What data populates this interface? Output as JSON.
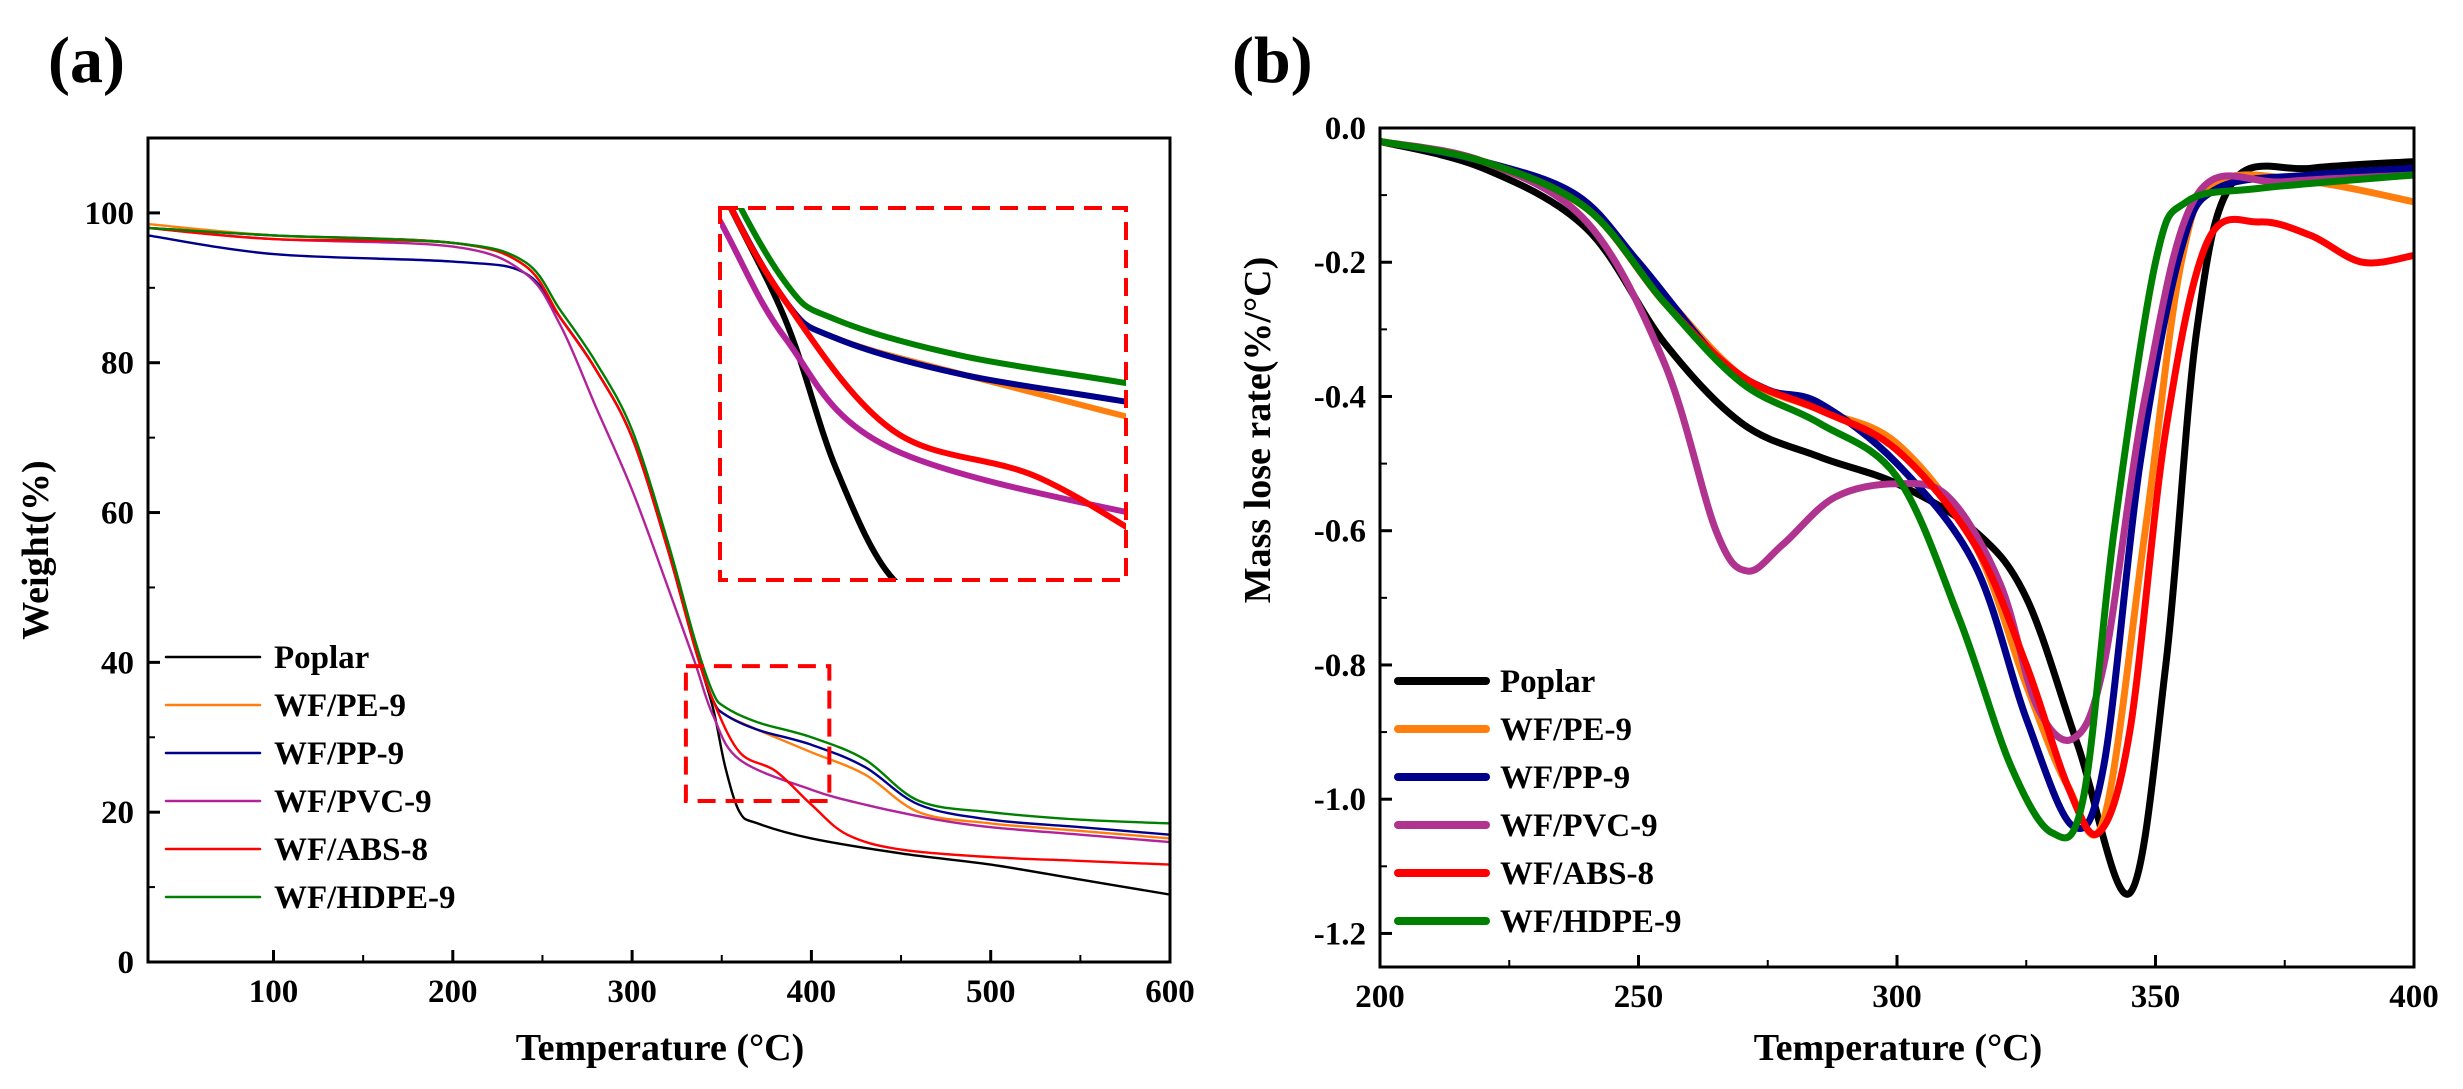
{
  "chart_data": [
    {
      "type": "line",
      "panel_label": "(a)",
      "xlabel": "Temperature (°C)",
      "ylabel": "Weight(%)",
      "xlim": [
        30,
        600
      ],
      "ylim": [
        0,
        110
      ],
      "xticks": [
        100,
        200,
        300,
        400,
        500,
        600
      ],
      "yticks": [
        0,
        20,
        40,
        60,
        80,
        100
      ],
      "legend_position": "bottom-left",
      "annotations": [
        "dashed red box around 330-410 °C, 21-39 % region",
        "magnified inset at top-right"
      ],
      "series": [
        {
          "name": "Poplar",
          "color": "#000000",
          "x": [
            30,
            100,
            200,
            240,
            260,
            280,
            300,
            320,
            335,
            345,
            352,
            360,
            370,
            400,
            450,
            500,
            550,
            600
          ],
          "y": [
            98,
            97,
            96,
            93,
            86,
            79,
            70,
            55,
            42,
            34,
            26,
            20,
            18.5,
            16.5,
            14.5,
            13,
            11,
            9
          ]
        },
        {
          "name": "WF/PE-9",
          "color": "#FF7F0E",
          "x": [
            30,
            100,
            200,
            240,
            260,
            280,
            300,
            320,
            335,
            345,
            352,
            370,
            400,
            430,
            460,
            500,
            550,
            600
          ],
          "y": [
            98.5,
            97,
            96,
            93,
            86,
            79,
            70,
            55,
            42,
            35,
            33,
            31,
            28,
            25,
            20,
            18.5,
            17.5,
            16.5
          ]
        },
        {
          "name": "WF/PP-9",
          "color": "#00008B",
          "x": [
            30,
            100,
            200,
            240,
            260,
            280,
            300,
            320,
            335,
            345,
            352,
            370,
            400,
            430,
            460,
            500,
            550,
            600
          ],
          "y": [
            97,
            94.5,
            93.5,
            92,
            86,
            79,
            70,
            55,
            42,
            35,
            33,
            31,
            29,
            26,
            21,
            19,
            18,
            17
          ]
        },
        {
          "name": "WF/PVC-9",
          "color": "#B22299",
          "x": [
            30,
            100,
            200,
            240,
            260,
            280,
            300,
            320,
            335,
            345,
            360,
            400,
            430,
            470,
            500,
            550,
            600
          ],
          "y": [
            98,
            96.5,
            95.5,
            92,
            85,
            74,
            63,
            50,
            40,
            33,
            27,
            23,
            21,
            19,
            18,
            17,
            16
          ]
        },
        {
          "name": "WF/ABS-8",
          "color": "#FF0000",
          "x": [
            30,
            100,
            200,
            240,
            260,
            280,
            300,
            320,
            335,
            345,
            360,
            380,
            400,
            420,
            450,
            500,
            550,
            600
          ],
          "y": [
            98,
            96.5,
            96,
            93,
            86,
            79,
            70,
            55,
            42,
            35,
            28,
            25.5,
            21,
            17,
            15,
            14,
            13.5,
            13
          ]
        },
        {
          "name": "WF/HDPE-9",
          "color": "#008000",
          "x": [
            30,
            100,
            200,
            240,
            260,
            280,
            300,
            320,
            335,
            345,
            352,
            370,
            400,
            430,
            460,
            500,
            550,
            600
          ],
          "y": [
            98,
            97,
            96,
            93.5,
            87,
            80,
            71,
            56,
            43,
            36,
            34,
            32,
            30,
            27,
            21.5,
            20,
            19,
            18.5
          ]
        }
      ]
    },
    {
      "type": "line",
      "panel_label": "(b)",
      "xlabel": "Temperature (°C)",
      "ylabel": "Mass lose rate(%/°C)",
      "xlim": [
        200,
        400
      ],
      "ylim": [
        -1.25,
        0
      ],
      "xticks": [
        200,
        250,
        300,
        350,
        400
      ],
      "yticks": [
        0.0,
        -0.2,
        -0.4,
        -0.6,
        -0.8,
        -1.0,
        -1.2
      ],
      "ytick_labels": [
        "0.0",
        "-0.2",
        "-0.4",
        "-0.6",
        "-0.8",
        "-1.0",
        "-1.2"
      ],
      "legend_position": "bottom-left",
      "series": [
        {
          "name": "Poplar",
          "color": "#000000",
          "x": [
            200,
            220,
            240,
            255,
            270,
            285,
            300,
            315,
            325,
            335,
            345,
            352,
            358,
            365,
            380,
            400
          ],
          "y": [
            -0.02,
            -0.06,
            -0.15,
            -0.32,
            -0.44,
            -0.49,
            -0.53,
            -0.6,
            -0.7,
            -0.92,
            -1.14,
            -0.8,
            -0.3,
            -0.08,
            -0.06,
            -0.05
          ]
        },
        {
          "name": "WF/PE-9",
          "color": "#FF7F0E",
          "x": [
            200,
            220,
            240,
            255,
            270,
            285,
            300,
            315,
            325,
            333,
            340,
            348,
            355,
            362,
            380,
            400
          ],
          "y": [
            -0.02,
            -0.05,
            -0.12,
            -0.25,
            -0.37,
            -0.42,
            -0.47,
            -0.62,
            -0.83,
            -0.98,
            -1.03,
            -0.6,
            -0.2,
            -0.08,
            -0.08,
            -0.11
          ]
        },
        {
          "name": "WF/PP-9",
          "color": "#00008B",
          "x": [
            200,
            220,
            238,
            250,
            265,
            275,
            285,
            300,
            315,
            325,
            334,
            340,
            347,
            355,
            362,
            380,
            400
          ],
          "y": [
            -0.02,
            -0.05,
            -0.1,
            -0.2,
            -0.34,
            -0.39,
            -0.41,
            -0.5,
            -0.65,
            -0.88,
            -1.04,
            -0.95,
            -0.5,
            -0.18,
            -0.09,
            -0.07,
            -0.06
          ]
        },
        {
          "name": "WF/PVC-9",
          "color": "#B0338F",
          "x": [
            200,
            220,
            240,
            255,
            265,
            271,
            278,
            288,
            300,
            310,
            320,
            327,
            334,
            340,
            348,
            358,
            375,
            400
          ],
          "y": [
            -0.02,
            -0.05,
            -0.14,
            -0.35,
            -0.6,
            -0.66,
            -0.62,
            -0.55,
            -0.53,
            -0.55,
            -0.68,
            -0.86,
            -0.91,
            -0.8,
            -0.4,
            -0.1,
            -0.08,
            -0.07
          ]
        },
        {
          "name": "WF/ABS-8",
          "color": "#FF0000",
          "x": [
            200,
            220,
            240,
            255,
            270,
            285,
            300,
            315,
            325,
            333,
            339,
            345,
            352,
            360,
            370,
            380,
            390,
            400
          ],
          "y": [
            -0.02,
            -0.05,
            -0.12,
            -0.26,
            -0.37,
            -0.42,
            -0.48,
            -0.62,
            -0.8,
            -0.98,
            -1.05,
            -0.9,
            -0.45,
            -0.17,
            -0.14,
            -0.16,
            -0.2,
            -0.19
          ]
        },
        {
          "name": "WF/HDPE-9",
          "color": "#008000",
          "x": [
            200,
            220,
            240,
            255,
            270,
            285,
            300,
            312,
            322,
            330,
            336,
            342,
            350,
            356,
            370,
            400
          ],
          "y": [
            -0.02,
            -0.05,
            -0.12,
            -0.26,
            -0.38,
            -0.44,
            -0.52,
            -0.73,
            -0.95,
            -1.05,
            -1.0,
            -0.6,
            -0.2,
            -0.11,
            -0.09,
            -0.07
          ]
        }
      ]
    }
  ]
}
